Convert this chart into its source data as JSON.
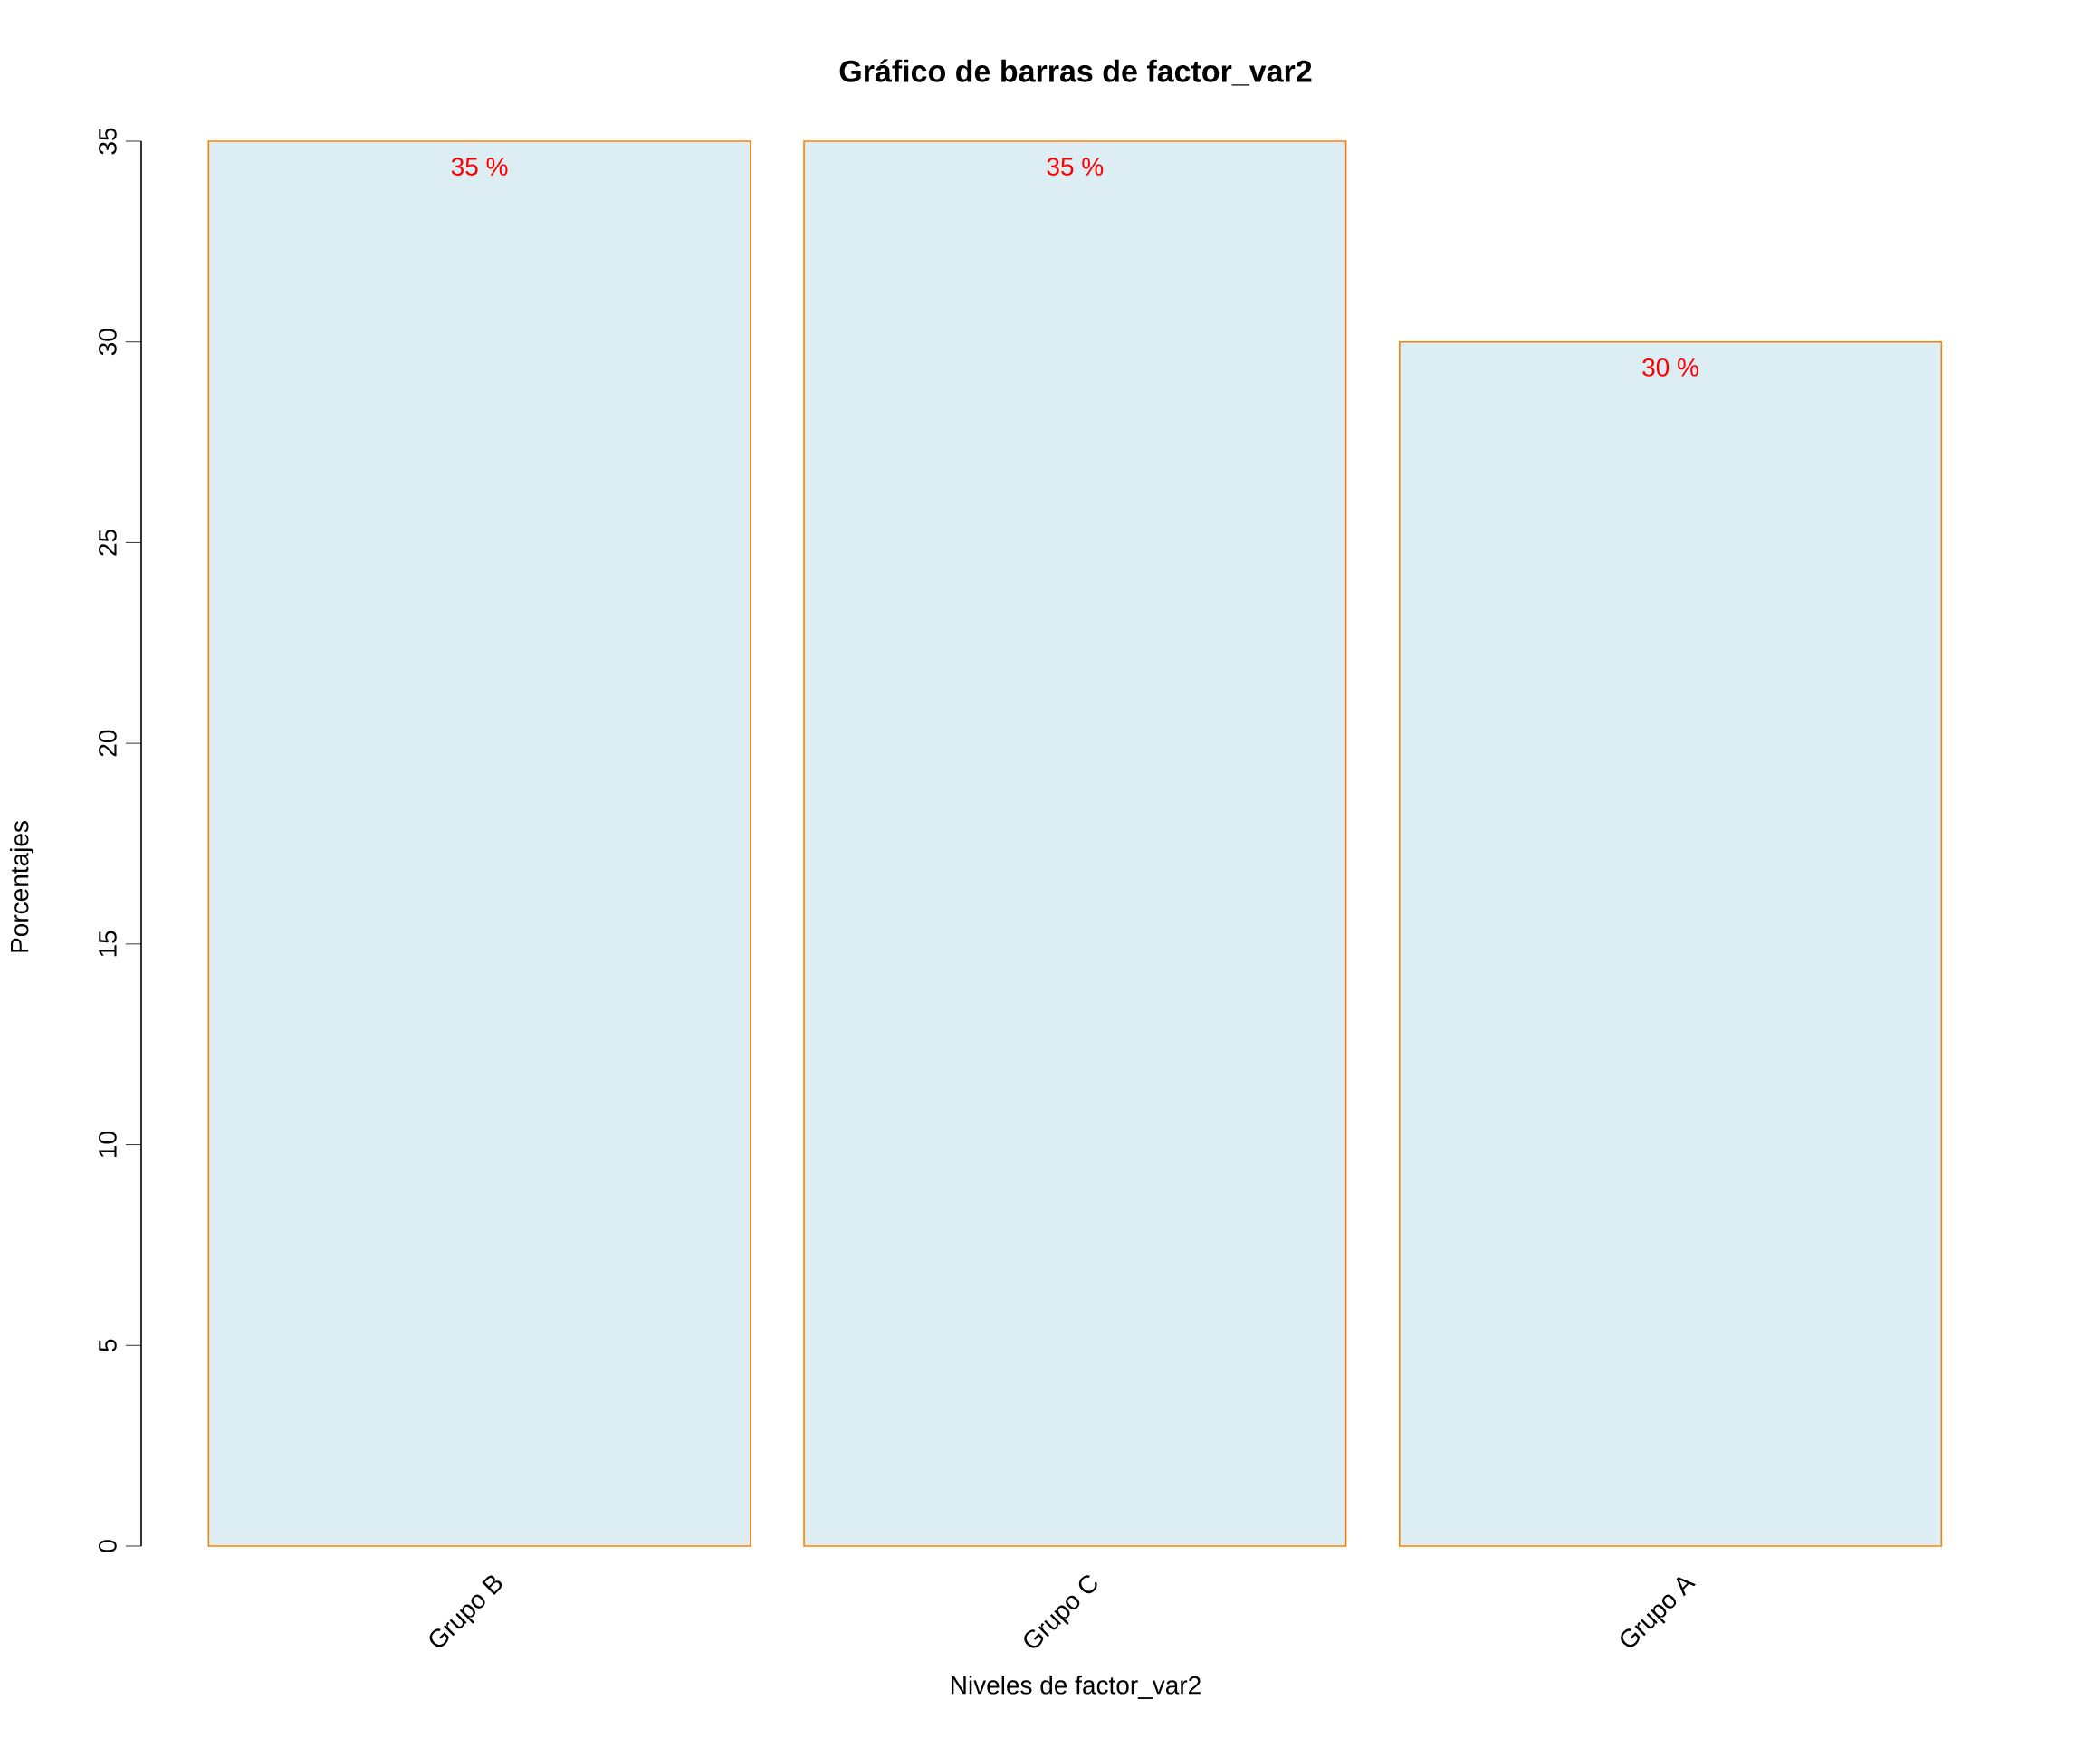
{
  "chart_data": {
    "type": "bar",
    "title": "Gráfico de barras de factor_var2",
    "xlabel": "Niveles de factor_var2",
    "ylabel": "Porcentajes",
    "categories": [
      "Grupo B",
      "Grupo C",
      "Grupo A"
    ],
    "values": [
      35,
      35,
      30
    ],
    "value_labels": [
      "35 %",
      "35 %",
      "30 %"
    ],
    "color": "#dcedf3",
    "ylim": [
      0,
      35
    ],
    "yticks": [
      0,
      5,
      10,
      15,
      20,
      25,
      30,
      35
    ],
    "grid": false
  }
}
